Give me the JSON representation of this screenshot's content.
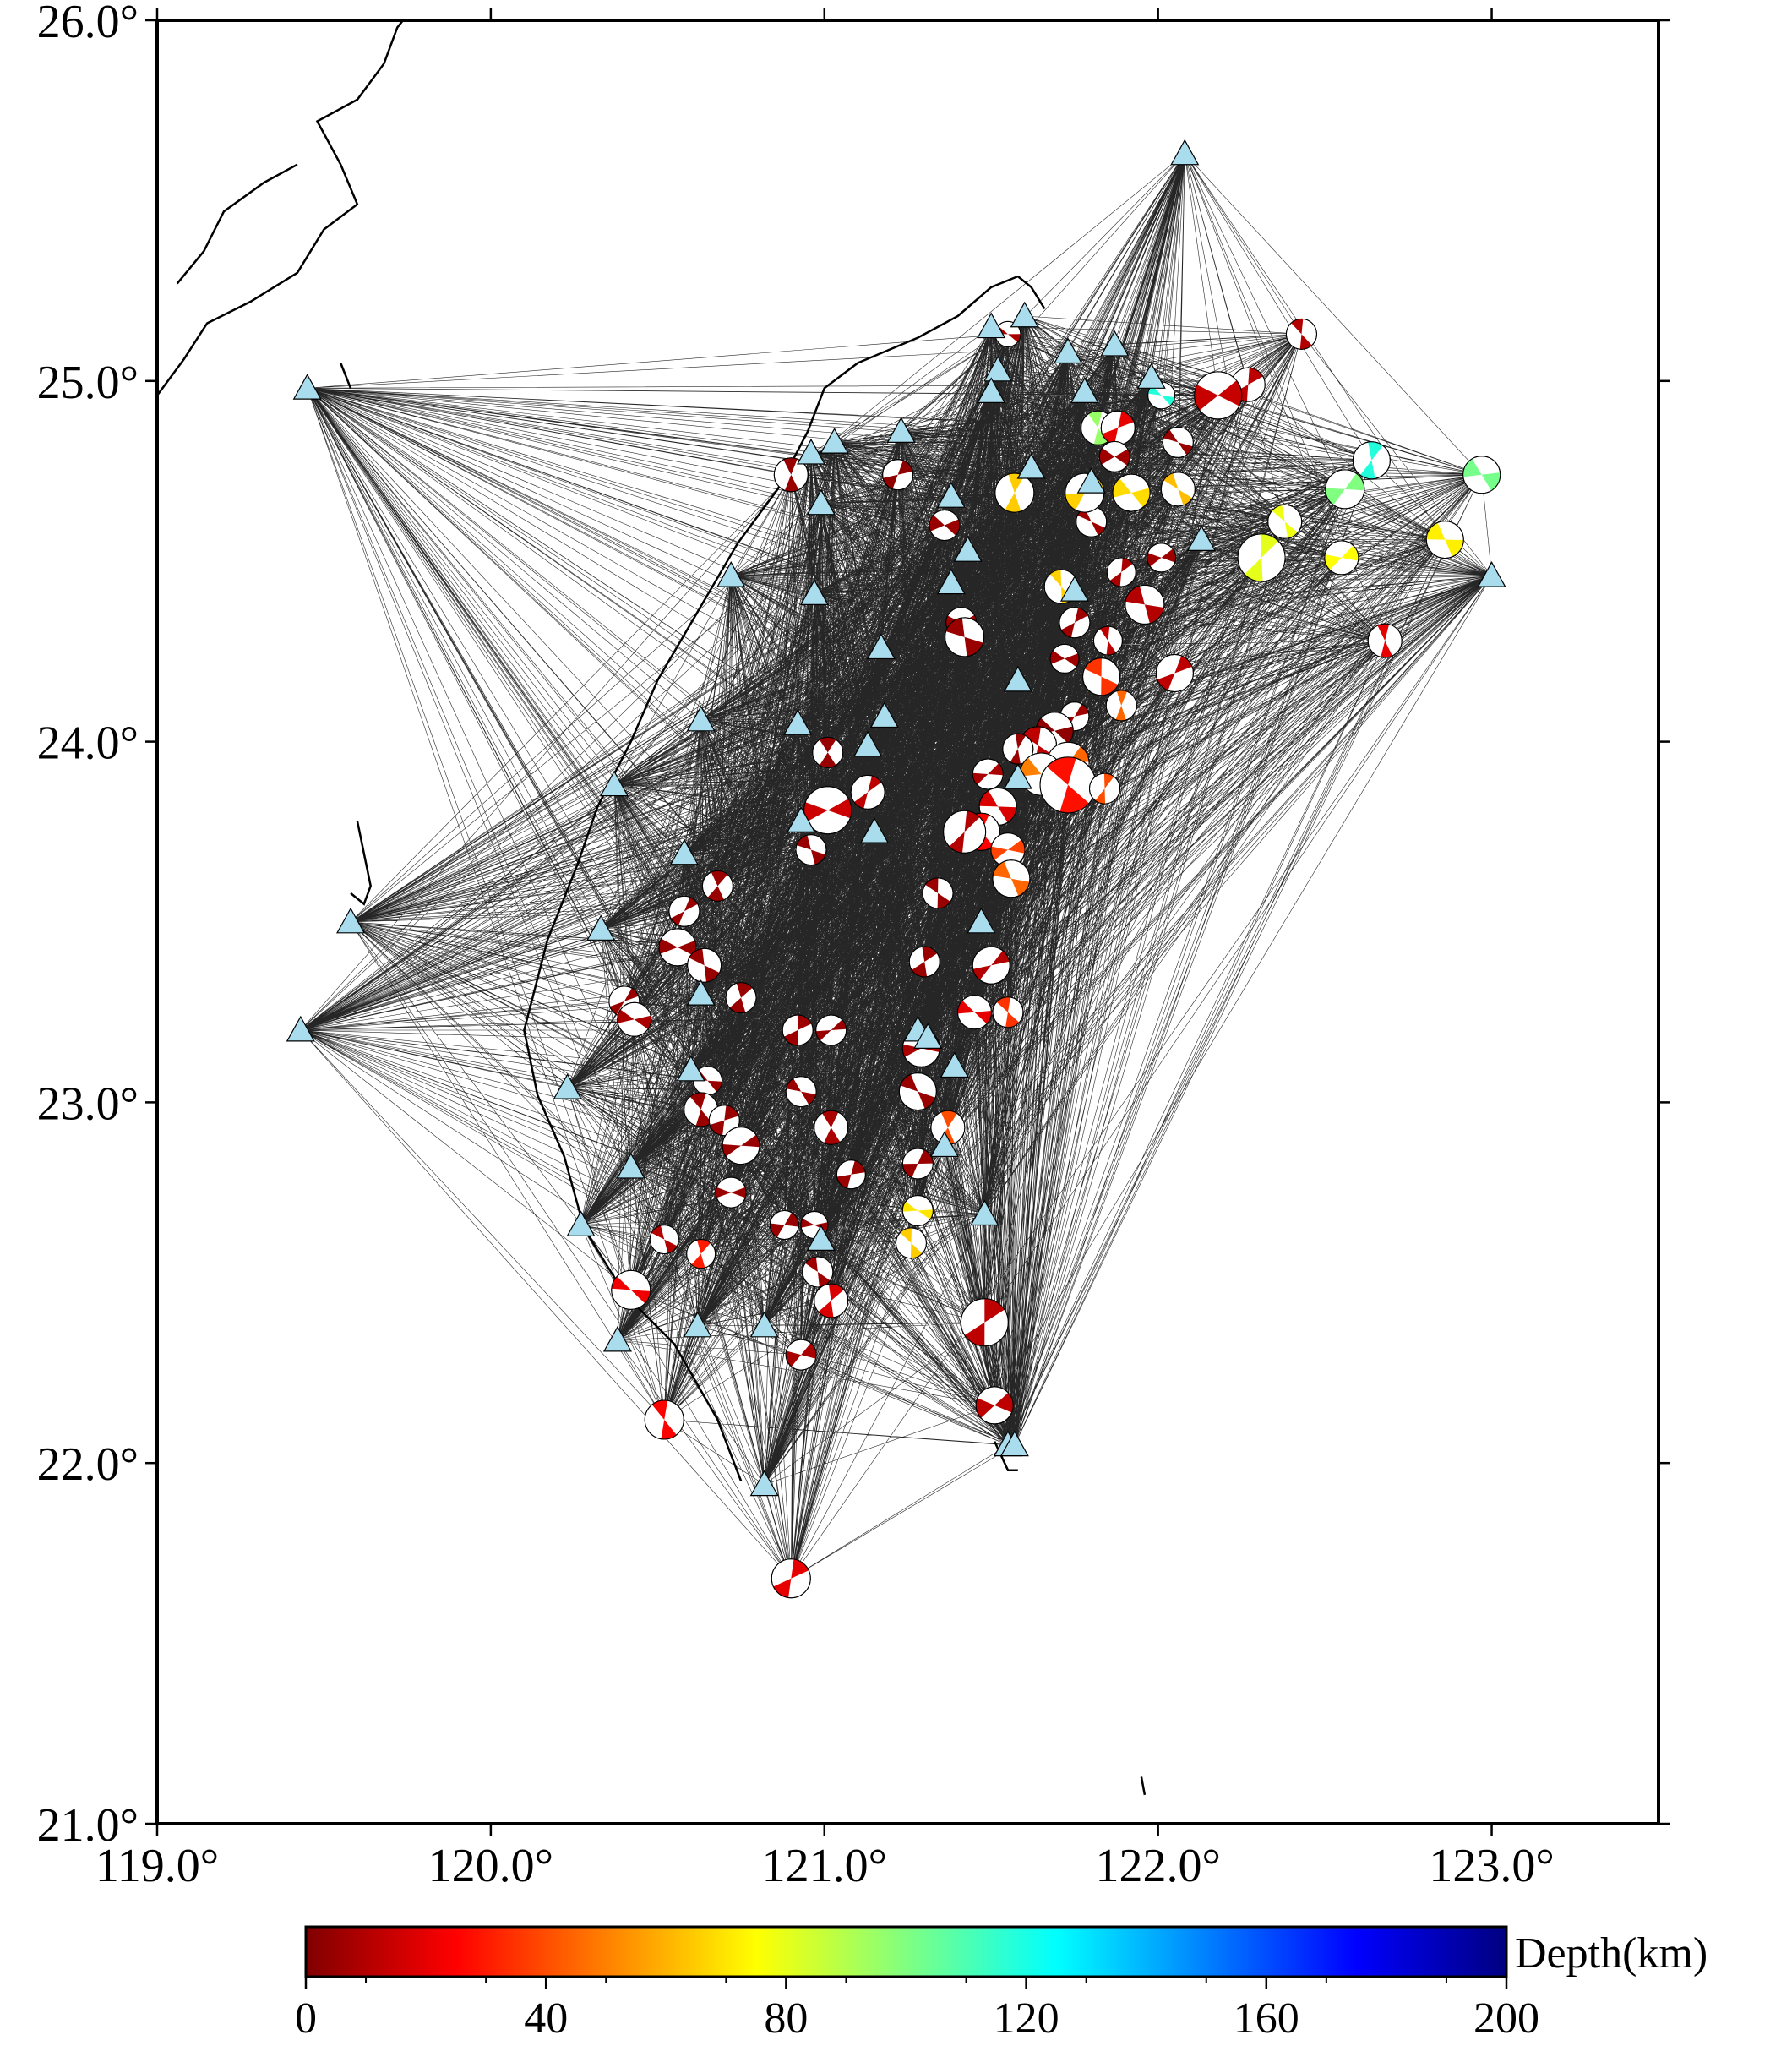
{
  "map": {
    "lon_range": [
      119.0,
      123.5
    ],
    "lat_range": [
      21.0,
      26.0
    ],
    "frame": "thick black border, outward ticks on all four sides",
    "lon_ticks": [
      {
        "value": 119.0,
        "label": "119.0°"
      },
      {
        "value": 120.0,
        "label": "120.0°"
      },
      {
        "value": 121.0,
        "label": "121.0°"
      },
      {
        "value": 122.0,
        "label": "122.0°"
      },
      {
        "value": 123.0,
        "label": "123.0°"
      }
    ],
    "lat_ticks": [
      {
        "value": 21.0,
        "label": "21.0°"
      },
      {
        "value": 22.0,
        "label": "22.0°"
      },
      {
        "value": 23.0,
        "label": "23.0°"
      },
      {
        "value": 24.0,
        "label": "24.0°"
      },
      {
        "value": 25.0,
        "label": "25.0°"
      },
      {
        "value": 26.0,
        "label": "26.0°"
      }
    ],
    "colors": {
      "station_fill": "#a9dcec",
      "ray_color": "#000000",
      "coastline": "#000000",
      "beachball_compressional_by_depth": "colorbar",
      "beachball_dilatational": "#ffffff"
    },
    "stations": [
      [
        119.45,
        24.98
      ],
      [
        119.58,
        23.5
      ],
      [
        119.43,
        23.2
      ],
      [
        120.23,
        23.04
      ],
      [
        120.27,
        22.66
      ],
      [
        120.33,
        23.48
      ],
      [
        120.37,
        23.88
      ],
      [
        120.42,
        22.82
      ],
      [
        120.38,
        22.34
      ],
      [
        120.58,
        23.69
      ],
      [
        120.63,
        24.06
      ],
      [
        120.63,
        23.3
      ],
      [
        120.6,
        23.09
      ],
      [
        120.62,
        22.38
      ],
      [
        120.72,
        24.46
      ],
      [
        120.82,
        22.38
      ],
      [
        120.82,
        21.94
      ],
      [
        120.92,
        24.05
      ],
      [
        120.93,
        23.78
      ],
      [
        120.96,
        24.8
      ],
      [
        120.99,
        24.66
      ],
      [
        120.97,
        24.41
      ],
      [
        120.99,
        22.62
      ],
      [
        121.03,
        24.83
      ],
      [
        121.13,
        23.99
      ],
      [
        121.15,
        23.75
      ],
      [
        121.17,
        24.26
      ],
      [
        121.18,
        24.07
      ],
      [
        121.23,
        24.86
      ],
      [
        121.28,
        23.2
      ],
      [
        121.36,
        22.88
      ],
      [
        121.38,
        24.68
      ],
      [
        121.38,
        24.44
      ],
      [
        121.39,
        23.1
      ],
      [
        121.43,
        24.53
      ],
      [
        121.47,
        23.5
      ],
      [
        121.48,
        22.69
      ],
      [
        121.5,
        25.15
      ],
      [
        121.52,
        25.03
      ],
      [
        121.5,
        24.97
      ],
      [
        121.55,
        22.05
      ],
      [
        121.57,
        22.05
      ],
      [
        121.58,
        24.17
      ],
      [
        121.58,
        23.9
      ],
      [
        121.6,
        25.18
      ],
      [
        121.62,
        24.76
      ],
      [
        121.73,
        25.08
      ],
      [
        121.75,
        24.42
      ],
      [
        121.78,
        24.97
      ],
      [
        121.8,
        24.72
      ],
      [
        121.87,
        25.1
      ],
      [
        121.98,
        25.01
      ],
      [
        122.08,
        25.63
      ],
      [
        122.13,
        24.56
      ],
      [
        123.0,
        24.46
      ],
      [
        121.31,
        23.18
      ]
    ],
    "events": [
      [
        121.55,
        25.13,
        8,
        15
      ],
      [
        122.43,
        25.13,
        10,
        18
      ],
      [
        122.27,
        24.99,
        12,
        20
      ],
      [
        122.18,
        24.96,
        14,
        28
      ],
      [
        122.01,
        24.96,
        118,
        16
      ],
      [
        121.82,
        24.87,
        95,
        20
      ],
      [
        121.88,
        24.87,
        20,
        20
      ],
      [
        121.87,
        24.79,
        6,
        18
      ],
      [
        122.06,
        24.83,
        5,
        18
      ],
      [
        120.9,
        24.74,
        5,
        20
      ],
      [
        121.22,
        24.74,
        3,
        18
      ],
      [
        121.36,
        24.6,
        5,
        18
      ],
      [
        121.8,
        24.61,
        6,
        18
      ],
      [
        121.57,
        24.69,
        65,
        23
      ],
      [
        121.78,
        24.69,
        66,
        23
      ],
      [
        121.92,
        24.69,
        68,
        22
      ],
      [
        122.06,
        24.7,
        62,
        20
      ],
      [
        122.64,
        24.78,
        118,
        22
      ],
      [
        122.56,
        24.7,
        100,
        23
      ],
      [
        122.97,
        24.74,
        102,
        22
      ],
      [
        122.38,
        24.61,
        78,
        20
      ],
      [
        122.31,
        24.51,
        80,
        28
      ],
      [
        122.55,
        24.51,
        75,
        20
      ],
      [
        122.86,
        24.56,
        72,
        22
      ],
      [
        121.71,
        24.43,
        66,
        20
      ],
      [
        121.89,
        24.47,
        8,
        17
      ],
      [
        122.01,
        24.51,
        6,
        17
      ],
      [
        121.96,
        24.38,
        10,
        23
      ],
      [
        121.85,
        24.28,
        12,
        17
      ],
      [
        121.75,
        24.33,
        6,
        18
      ],
      [
        121.41,
        24.33,
        5,
        18
      ],
      [
        121.42,
        24.29,
        5,
        23
      ],
      [
        122.68,
        24.28,
        20,
        20
      ],
      [
        122.05,
        24.19,
        12,
        22
      ],
      [
        121.72,
        24.23,
        6,
        17
      ],
      [
        121.83,
        24.18,
        35,
        22
      ],
      [
        121.89,
        24.1,
        45,
        18
      ],
      [
        121.75,
        24.07,
        6,
        17
      ],
      [
        121.69,
        24.03,
        3,
        22
      ],
      [
        121.64,
        23.99,
        12,
        22
      ],
      [
        121.58,
        23.98,
        5,
        18
      ],
      [
        121.73,
        23.94,
        45,
        25
      ],
      [
        121.65,
        23.91,
        50,
        25
      ],
      [
        121.73,
        23.88,
        28,
        33
      ],
      [
        121.84,
        23.87,
        40,
        18
      ],
      [
        121.49,
        23.91,
        8,
        18
      ],
      [
        121.52,
        23.82,
        18,
        22
      ],
      [
        121.47,
        23.75,
        25,
        22
      ],
      [
        121.42,
        23.75,
        10,
        25
      ],
      [
        121.55,
        23.7,
        38,
        20
      ],
      [
        121.56,
        23.62,
        45,
        22
      ],
      [
        121.01,
        23.97,
        5,
        18
      ],
      [
        121.13,
        23.86,
        12,
        20
      ],
      [
        121.01,
        23.81,
        15,
        28
      ],
      [
        120.96,
        23.7,
        5,
        18
      ],
      [
        120.68,
        23.6,
        5,
        18
      ],
      [
        120.58,
        23.53,
        5,
        18
      ],
      [
        120.56,
        23.43,
        5,
        22
      ],
      [
        120.64,
        23.38,
        5,
        20
      ],
      [
        120.75,
        23.29,
        5,
        18
      ],
      [
        120.4,
        23.28,
        5,
        18
      ],
      [
        120.43,
        23.23,
        8,
        20
      ],
      [
        121.34,
        23.58,
        5,
        18
      ],
      [
        121.3,
        23.39,
        5,
        18
      ],
      [
        121.5,
        23.38,
        10,
        22
      ],
      [
        121.45,
        23.25,
        20,
        20
      ],
      [
        121.55,
        23.25,
        35,
        18
      ],
      [
        120.92,
        23.2,
        6,
        18
      ],
      [
        121.02,
        23.2,
        5,
        18
      ],
      [
        120.65,
        23.06,
        5,
        17
      ],
      [
        120.63,
        22.98,
        5,
        20
      ],
      [
        120.7,
        22.95,
        5,
        18
      ],
      [
        120.75,
        22.88,
        5,
        22
      ],
      [
        120.93,
        23.03,
        5,
        18
      ],
      [
        121.02,
        22.93,
        8,
        20
      ],
      [
        121.08,
        22.8,
        5,
        17
      ],
      [
        121.29,
        23.15,
        8,
        22
      ],
      [
        121.28,
        23.03,
        5,
        22
      ],
      [
        121.37,
        22.93,
        40,
        20
      ],
      [
        121.28,
        22.83,
        5,
        18
      ],
      [
        120.72,
        22.75,
        5,
        18
      ],
      [
        120.52,
        22.62,
        10,
        17
      ],
      [
        120.63,
        22.58,
        30,
        17
      ],
      [
        120.88,
        22.66,
        5,
        17
      ],
      [
        120.97,
        22.66,
        5,
        16
      ],
      [
        120.98,
        22.53,
        6,
        18
      ],
      [
        121.02,
        22.45,
        18,
        20
      ],
      [
        120.93,
        22.3,
        8,
        18
      ],
      [
        121.28,
        22.7,
        70,
        18
      ],
      [
        121.26,
        22.61,
        65,
        18
      ],
      [
        121.48,
        22.39,
        12,
        28
      ],
      [
        121.51,
        22.16,
        12,
        22
      ],
      [
        120.42,
        22.48,
        22,
        23
      ],
      [
        120.52,
        22.12,
        25,
        23
      ],
      [
        120.9,
        21.68,
        20,
        23
      ]
    ],
    "colorbar": {
      "label": "Depth(km)",
      "min": 0,
      "max": 200,
      "tick_labels": [
        "0",
        "40",
        "80",
        "120",
        "160",
        "200"
      ],
      "colormap": [
        "#800000",
        "#ff0000",
        "#ff8000",
        "#ffff00",
        "#80ff80",
        "#00ffff",
        "#0080ff",
        "#0000ff",
        "#000080"
      ]
    }
  }
}
